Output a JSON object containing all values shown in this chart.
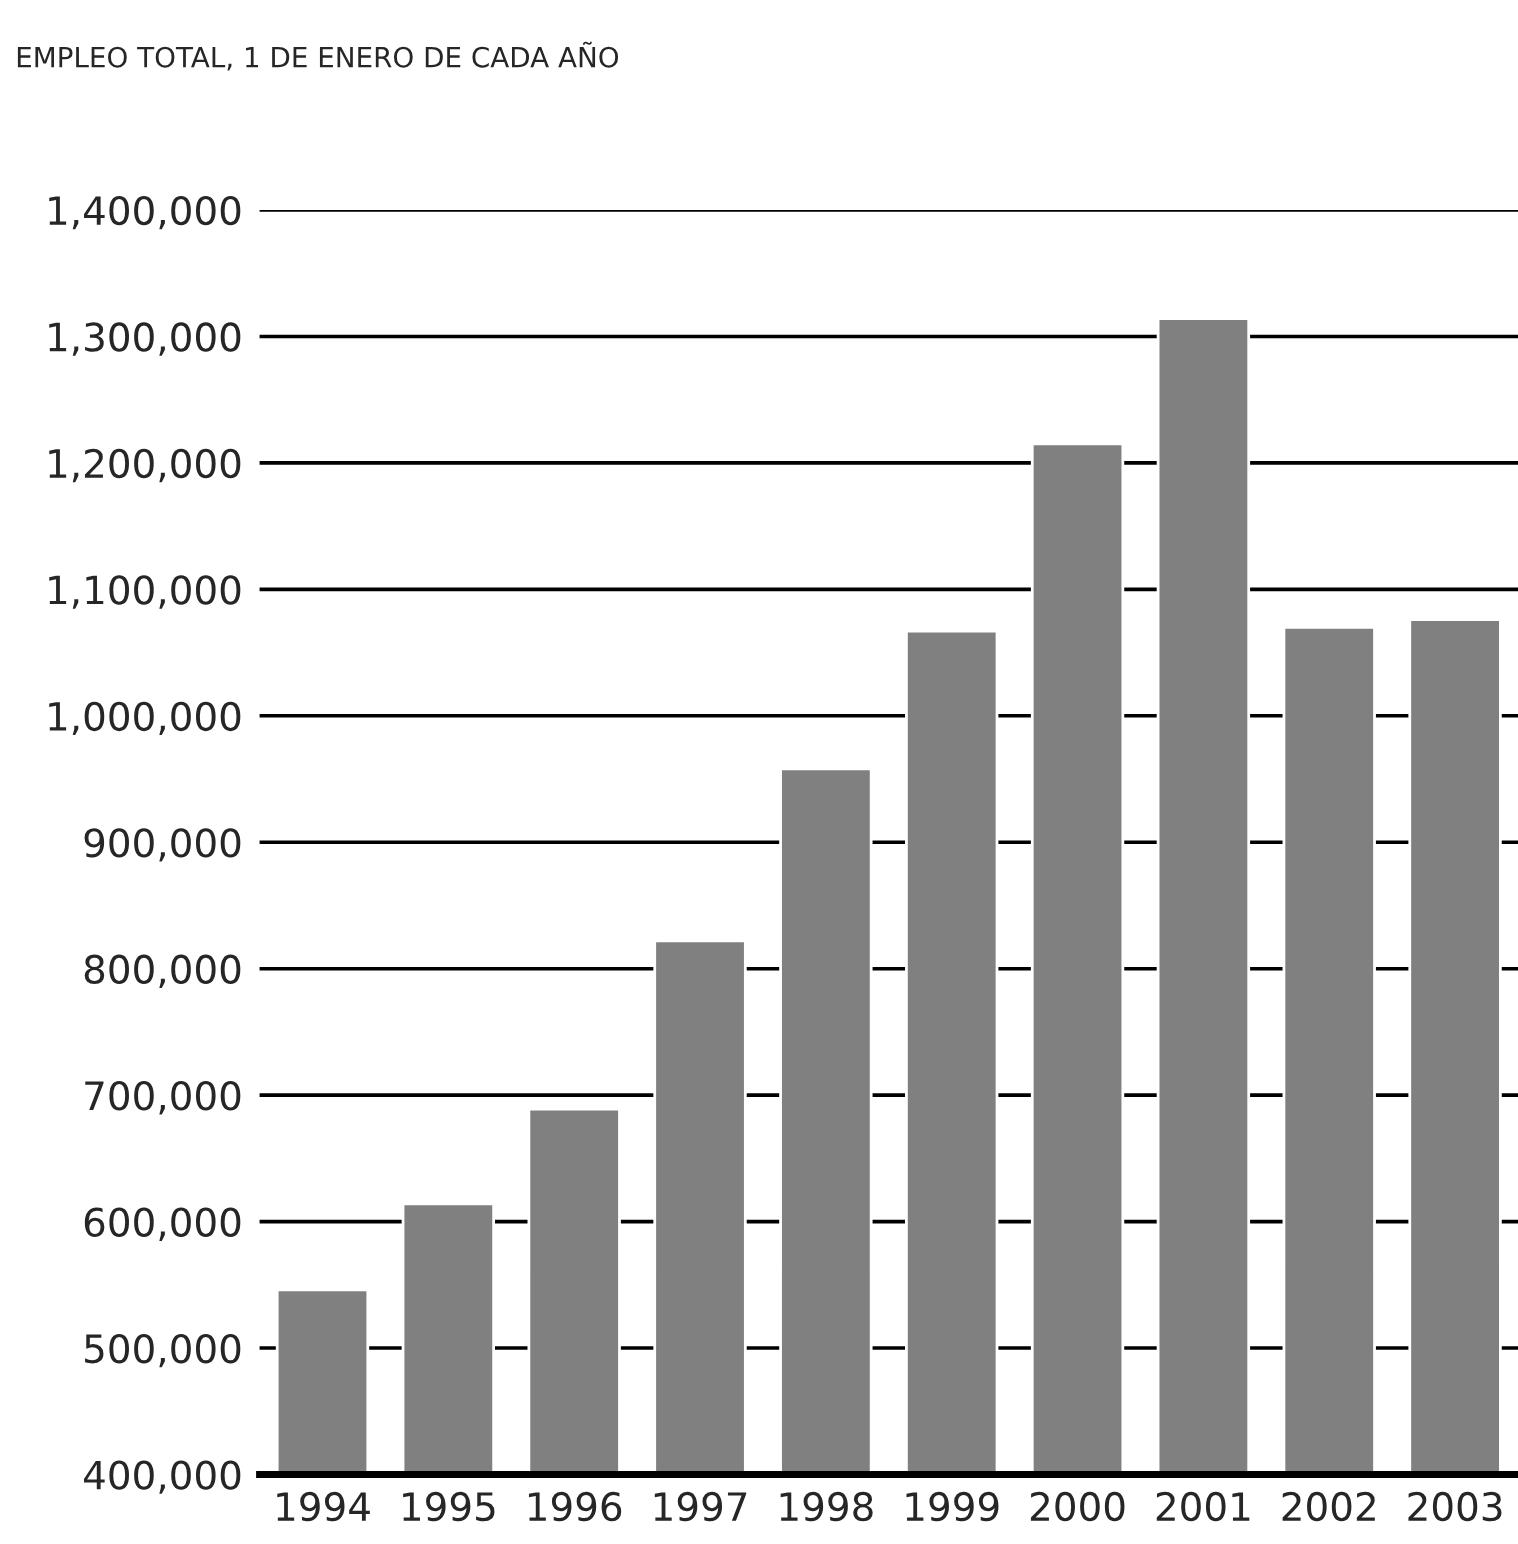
{
  "chart_data": {
    "type": "bar",
    "title": "EMPLEO TOTAL, 1 DE ENERO DE CADA AÑO",
    "categories": [
      "1994",
      "1995",
      "1996",
      "1997",
      "1998",
      "1999",
      "2000",
      "2001",
      "2002",
      "2003"
    ],
    "values": [
      546000,
      614000,
      689000,
      822000,
      958000,
      1067000,
      1215000,
      1314000,
      1070000,
      1076000
    ],
    "color": "#808080",
    "ylim": [
      400000,
      1400000
    ],
    "yticks": [
      {
        "value": 400000,
        "label": "400,000"
      },
      {
        "value": 500000,
        "label": "500,000"
      },
      {
        "value": 600000,
        "label": "600,000"
      },
      {
        "value": 700000,
        "label": "700,000"
      },
      {
        "value": 800000,
        "label": "800,000"
      },
      {
        "value": 900000,
        "label": "900,000"
      },
      {
        "value": 1000000,
        "label": "1,000,000"
      },
      {
        "value": 1100000,
        "label": "1,100,000"
      },
      {
        "value": 1200000,
        "label": "1,200,000"
      },
      {
        "value": 1300000,
        "label": "1,300,000"
      },
      {
        "value": 1400000,
        "label": "1,400,000"
      }
    ],
    "grid": "y",
    "legend": false
  }
}
